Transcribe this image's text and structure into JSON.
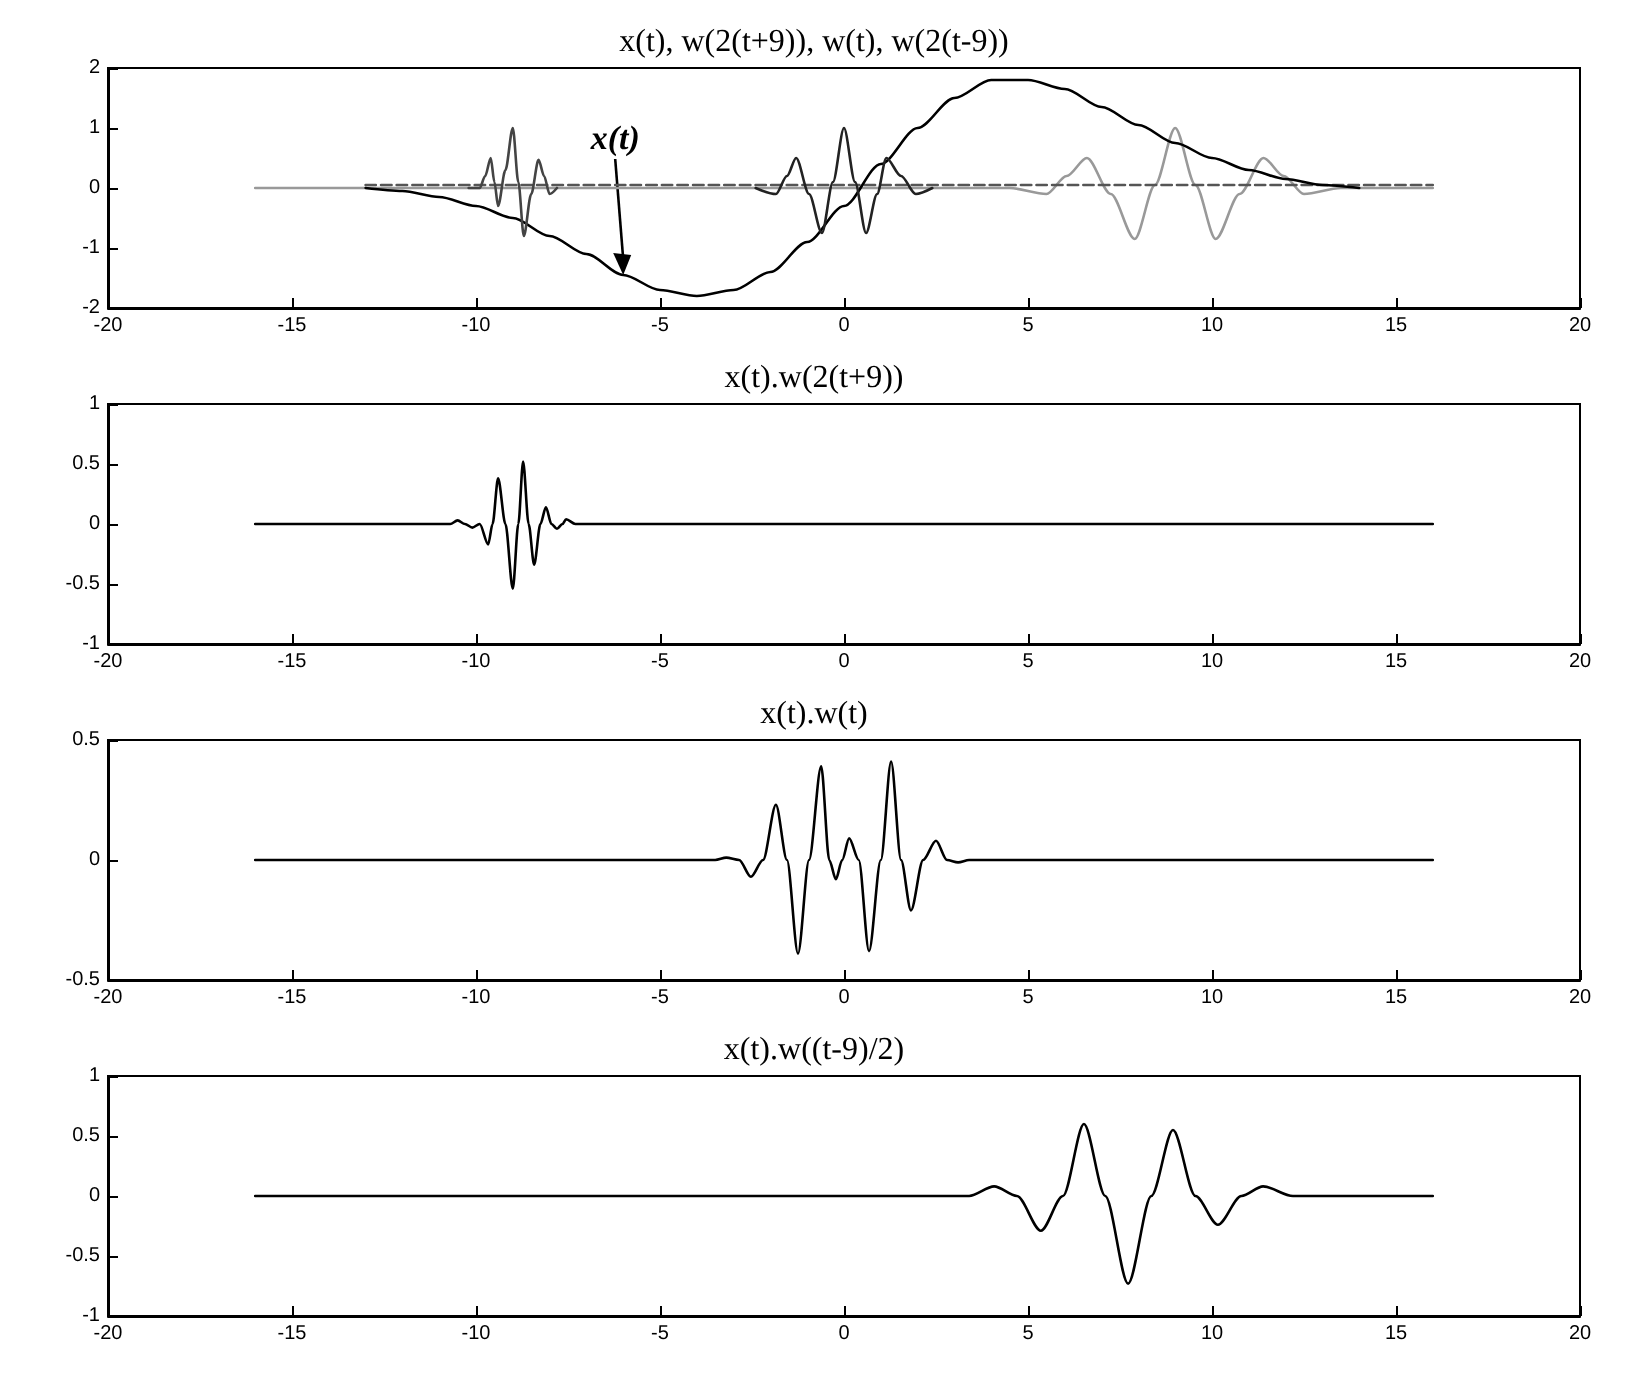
{
  "chart_data": [
    {
      "type": "line",
      "title": "x(t), w(2(t+9)), w(t), w(2(t-9))",
      "xlim": [
        -20,
        20
      ],
      "xticks": [
        -20,
        -15,
        -10,
        -5,
        0,
        5,
        10,
        15,
        20
      ],
      "ylim": [
        -2,
        2
      ],
      "yticks": [
        -2,
        -1,
        0,
        1,
        2
      ],
      "grid": false,
      "marker": "none",
      "annotations": [
        {
          "text": "x(t)",
          "x": -6,
          "y": -1.45
        }
      ],
      "series": [
        {
          "color": "#999999",
          "x": [
            -16,
            4.5,
            5.5,
            6.05,
            6.6,
            7.25,
            7.9,
            8.45,
            9,
            9.55,
            10.1,
            10.75,
            11.4,
            11.95,
            12.5,
            13.5,
            16
          ],
          "values": [
            0,
            0,
            -0.1,
            0.2,
            0.5,
            -0.1,
            -0.85,
            0.05,
            1.0,
            0.05,
            -0.85,
            -0.1,
            0.5,
            0.2,
            -0.1,
            0,
            0
          ]
        },
        {
          "color": "#555555",
          "line_style": "dashed",
          "x": [
            -13,
            16
          ],
          "values": [
            0.05,
            0.05
          ]
        },
        {
          "color": "#000000",
          "x": [
            -13,
            -12,
            -11,
            -10,
            -9,
            -8,
            -7,
            -6,
            -5,
            -4,
            -3,
            -2,
            -1,
            0,
            1,
            2,
            3,
            4,
            5,
            6,
            7,
            8,
            9,
            10,
            11,
            12,
            13,
            14
          ],
          "values": [
            0,
            -0.05,
            -0.15,
            -0.3,
            -0.5,
            -0.8,
            -1.1,
            -1.45,
            -1.7,
            -1.8,
            -1.7,
            -1.4,
            -0.9,
            -0.3,
            0.4,
            1.0,
            1.5,
            1.8,
            1.8,
            1.65,
            1.35,
            1.05,
            0.75,
            0.5,
            0.3,
            0.15,
            0.05,
            0
          ]
        },
        {
          "color": "#444444",
          "x": [
            -10.2,
            -9.9,
            -9.75,
            -9.6,
            -9.5,
            -9.4,
            -9.2,
            -9.0,
            -8.85,
            -8.7,
            -8.5,
            -8.3,
            -8.15,
            -8.0,
            -7.8
          ],
          "values": [
            0,
            0,
            0.2,
            0.5,
            0.1,
            -0.3,
            0.3,
            1.0,
            0.1,
            -0.8,
            -0.1,
            0.47,
            0.2,
            -0.1,
            0
          ]
        },
        {
          "color": "#222222",
          "x": [
            -2.4,
            -1.85,
            -1.55,
            -1.3,
            -0.95,
            -0.6,
            -0.3,
            0,
            0.3,
            0.6,
            0.9,
            1.15,
            1.55,
            1.95,
            2.4
          ],
          "values": [
            0,
            -0.1,
            0.2,
            0.5,
            -0.1,
            -0.75,
            0.1,
            1.0,
            0.1,
            -0.75,
            -0.1,
            0.5,
            0.2,
            -0.1,
            0
          ]
        }
      ]
    },
    {
      "type": "line",
      "title": "x(t).w(2(t+9))",
      "xlim": [
        -20,
        20
      ],
      "xticks": [
        -20,
        -15,
        -10,
        -5,
        0,
        5,
        10,
        15,
        20
      ],
      "ylim": [
        -1,
        1
      ],
      "yticks": [
        -1,
        -0.5,
        0,
        0.5,
        1
      ],
      "grid": false,
      "marker": "none",
      "series": [
        {
          "color": "#000000",
          "x": [
            -16,
            -10.7,
            -10.5,
            -10.3,
            -10.1,
            -9.9,
            -9.67,
            -9.55,
            -9.4,
            -9.2,
            -9.0,
            -8.85,
            -8.72,
            -8.57,
            -8.42,
            -8.25,
            -8.1,
            -7.95,
            -7.8,
            -7.65,
            -7.55,
            -7.3,
            16
          ],
          "values": [
            0,
            0,
            0.03,
            0,
            -0.03,
            0,
            -0.17,
            0,
            0.38,
            0,
            -0.54,
            0,
            0.52,
            0,
            -0.34,
            0,
            0.14,
            0,
            -0.04,
            0,
            0.04,
            0,
            0
          ]
        }
      ]
    },
    {
      "type": "line",
      "title": "x(t).w(t)",
      "xlim": [
        -20,
        20
      ],
      "xticks": [
        -20,
        -15,
        -10,
        -5,
        0,
        5,
        10,
        15,
        20
      ],
      "ylim": [
        -0.5,
        0.5
      ],
      "yticks": [
        -0.5,
        0,
        0.5
      ],
      "grid": false,
      "marker": "none",
      "series": [
        {
          "color": "#000000",
          "x": [
            -16,
            -3.5,
            -3.2,
            -2.85,
            -2.53,
            -2.2,
            -1.85,
            -1.55,
            -1.25,
            -0.95,
            -0.62,
            -0.4,
            -0.22,
            -0.05,
            0.14,
            0.4,
            0.68,
            1.0,
            1.28,
            1.55,
            1.82,
            2.15,
            2.5,
            2.8,
            3.1,
            3.4,
            16
          ],
          "values": [
            0,
            0,
            0.01,
            0,
            -0.07,
            0,
            0.23,
            0,
            -0.39,
            0,
            0.39,
            0,
            -0.08,
            0,
            0.09,
            0,
            -0.38,
            0,
            0.41,
            0,
            -0.21,
            0,
            0.08,
            0,
            -0.01,
            0,
            0
          ]
        }
      ]
    },
    {
      "type": "line",
      "title": "x(t).w((t-9)/2)",
      "xlim": [
        -20,
        20
      ],
      "xticks": [
        -20,
        -15,
        -10,
        -5,
        0,
        5,
        10,
        15,
        20
      ],
      "ylim": [
        -1,
        1
      ],
      "yticks": [
        -1,
        -0.5,
        0,
        0.5,
        1
      ],
      "grid": false,
      "marker": "none",
      "series": [
        {
          "color": "#000000",
          "x": [
            -16,
            3.4,
            4.08,
            4.7,
            5.35,
            5.95,
            6.52,
            7.1,
            7.72,
            8.35,
            8.94,
            9.55,
            10.16,
            10.8,
            11.39,
            12.2,
            16
          ],
          "values": [
            0,
            0,
            0.08,
            0,
            -0.29,
            0,
            0.6,
            0,
            -0.73,
            0,
            0.55,
            0,
            -0.24,
            0,
            0.08,
            0,
            0
          ]
        }
      ]
    }
  ]
}
